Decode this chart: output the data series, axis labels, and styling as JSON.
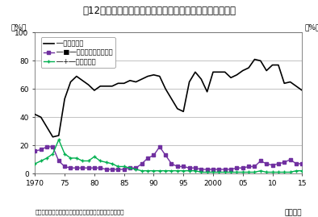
{
  "title": "図12　賃金の改定の決定に当たり最も重視した要素の割合",
  "ylabel_left": "（%）",
  "ylabel_right": "（%）",
  "xlabel": "（暦年）",
  "source": "（資料）厚生労働省「賃金引上げ等の実態に関する調査」",
  "xlim": [
    1970,
    2015
  ],
  "ylim": [
    0,
    100
  ],
  "yticks": [
    0,
    20,
    40,
    60,
    80,
    100
  ],
  "xticks": [
    1970,
    1975,
    1980,
    1985,
    1990,
    1995,
    2000,
    2005,
    2010,
    2015
  ],
  "xticklabels": [
    "1970",
    "75",
    "80",
    "85",
    "90",
    "95",
    "2000",
    "05",
    "10",
    "15"
  ],
  "series": {
    "kigyou": {
      "label": "―企業の業績",
      "color": "#000000",
      "marker": null,
      "linewidth": 1.2,
      "x": [
        1970,
        1971,
        1972,
        1973,
        1974,
        1975,
        1976,
        1977,
        1978,
        1979,
        1980,
        1981,
        1982,
        1983,
        1984,
        1985,
        1986,
        1987,
        1988,
        1989,
        1990,
        1991,
        1992,
        1993,
        1994,
        1995,
        1996,
        1997,
        1998,
        1999,
        2000,
        2001,
        2002,
        2003,
        2004,
        2005,
        2006,
        2007,
        2008,
        2009,
        2010,
        2011,
        2012,
        2013,
        2014,
        2015
      ],
      "y": [
        42,
        40,
        33,
        26,
        27,
        53,
        65,
        69,
        66,
        63,
        59,
        62,
        62,
        62,
        64,
        64,
        66,
        65,
        67,
        69,
        70,
        69,
        60,
        53,
        46,
        44,
        65,
        72,
        67,
        58,
        72,
        72,
        72,
        68,
        70,
        73,
        75,
        81,
        80,
        73,
        77,
        77,
        64,
        65,
        62,
        59
      ]
    },
    "roudou": {
      "label": "―■―労働力の確保・定着",
      "color": "#7030a0",
      "marker": "s",
      "markersize": 2.5,
      "linewidth": 1.0,
      "x": [
        1970,
        1971,
        1972,
        1973,
        1974,
        1975,
        1976,
        1977,
        1978,
        1979,
        1980,
        1981,
        1982,
        1983,
        1984,
        1985,
        1986,
        1987,
        1988,
        1989,
        1990,
        1991,
        1992,
        1993,
        1994,
        1995,
        1996,
        1997,
        1998,
        1999,
        2000,
        2001,
        2002,
        2003,
        2004,
        2005,
        2006,
        2007,
        2008,
        2009,
        2010,
        2011,
        2012,
        2013,
        2014,
        2015
      ],
      "y": [
        16,
        17,
        19,
        19,
        9,
        5,
        4,
        4,
        4,
        4,
        4,
        4,
        3,
        3,
        3,
        3,
        4,
        4,
        7,
        11,
        13,
        19,
        13,
        7,
        5,
        5,
        4,
        4,
        3,
        3,
        3,
        3,
        3,
        3,
        4,
        4,
        5,
        5,
        9,
        7,
        6,
        7,
        8,
        10,
        7,
        7
      ]
    },
    "bukka": {
      "label": "―+―物価の動向",
      "color": "#00b050",
      "marker": "+",
      "markersize": 3.5,
      "linewidth": 1.0,
      "x": [
        1970,
        1971,
        1972,
        1973,
        1974,
        1975,
        1976,
        1977,
        1978,
        1979,
        1980,
        1981,
        1982,
        1983,
        1984,
        1985,
        1986,
        1987,
        1988,
        1989,
        1990,
        1991,
        1992,
        1993,
        1994,
        1995,
        1996,
        1997,
        1998,
        1999,
        2000,
        2001,
        2002,
        2003,
        2004,
        2005,
        2006,
        2007,
        2008,
        2009,
        2010,
        2011,
        2012,
        2013,
        2014,
        2015
      ],
      "y": [
        7,
        9,
        11,
        14,
        24,
        14,
        11,
        11,
        9,
        9,
        12,
        9,
        8,
        7,
        5,
        5,
        4,
        3,
        2,
        2,
        2,
        2,
        2,
        2,
        2,
        2,
        2,
        2,
        1,
        1,
        1,
        1,
        1,
        1,
        1,
        1,
        1,
        1,
        2,
        1,
        1,
        1,
        1,
        1,
        2,
        2
      ]
    }
  },
  "background_color": "#ffffff",
  "grid_color": "#aaaaaa",
  "title_fontsize": 8.5,
  "tick_fontsize": 6.5,
  "legend_fontsize": 6.0
}
